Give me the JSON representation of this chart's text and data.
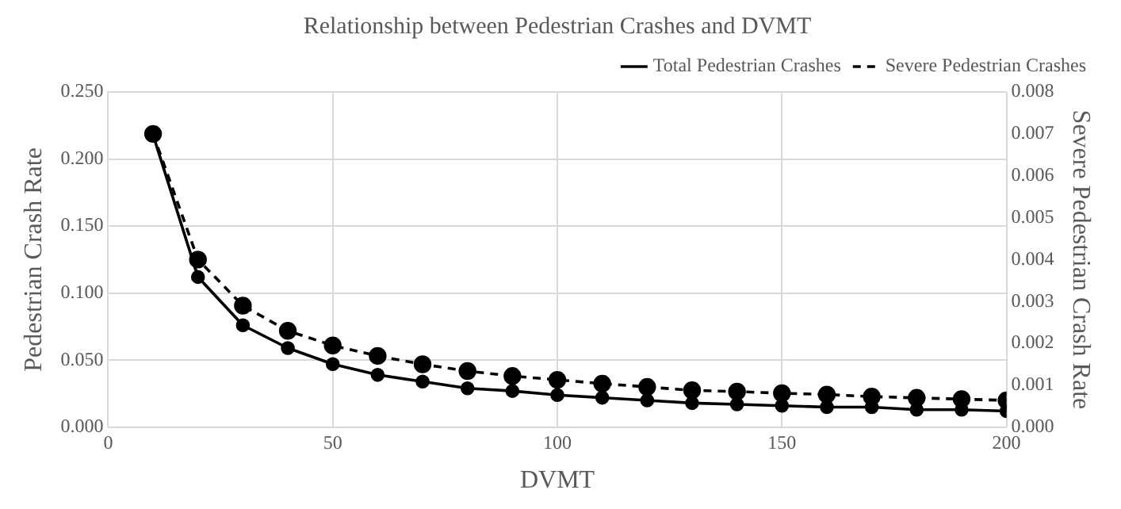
{
  "chart_data": {
    "type": "line",
    "title": "Relationship between Pedestrian Crashes and DVMT",
    "xlabel": "DVMT",
    "ylabel": "Pedestrian Crash Rate",
    "y2label": "Severe Pedestrian Crash Rate",
    "x": [
      10,
      20,
      30,
      40,
      50,
      60,
      70,
      80,
      90,
      100,
      110,
      120,
      130,
      140,
      150,
      160,
      170,
      180,
      190,
      200
    ],
    "series": [
      {
        "name": "Total Pedestrian Crashes",
        "color": "#000000",
        "line_style": "solid",
        "values": [
          0.218,
          0.112,
          0.076,
          0.059,
          0.047,
          0.039,
          0.034,
          0.029,
          0.027,
          0.024,
          0.022,
          0.02,
          0.018,
          0.017,
          0.016,
          0.015,
          0.015,
          0.013,
          0.013,
          0.012
        ]
      },
      {
        "name": "Severe Pedestrian Crashes",
        "color": "#000000",
        "line_style": "dashed",
        "axis": "y2",
        "values": [
          0.007,
          0.004,
          0.0029,
          0.0023,
          0.00195,
          0.0017,
          0.0015,
          0.00134,
          0.00122,
          0.00113,
          0.00104,
          0.00096,
          0.00088,
          0.00085,
          0.00081,
          0.00078,
          0.00073,
          0.0007,
          0.00067,
          0.00064
        ]
      }
    ],
    "xlim": [
      0,
      200
    ],
    "xticks": [
      0,
      50,
      100,
      150,
      200
    ],
    "ylim": [
      0,
      0.25
    ],
    "yticks": [
      {
        "value": 0,
        "label": "0.000"
      },
      {
        "value": 0.05,
        "label": "0.050"
      },
      {
        "value": 0.1,
        "label": "0.100"
      },
      {
        "value": 0.15,
        "label": "0.150"
      },
      {
        "value": 0.2,
        "label": "0.200"
      },
      {
        "value": 0.25,
        "label": "0.250"
      }
    ],
    "y2lim": [
      0,
      0.008
    ],
    "y2ticks": [
      {
        "value": 0,
        "label": "0.000"
      },
      {
        "value": 0.001,
        "label": "0.001"
      },
      {
        "value": 0.002,
        "label": "0.002"
      },
      {
        "value": 0.003,
        "label": "0.003"
      },
      {
        "value": 0.004,
        "label": "0.004"
      },
      {
        "value": 0.005,
        "label": "0.005"
      },
      {
        "value": 0.006,
        "label": "0.006"
      },
      {
        "value": 0.007,
        "label": "0.007"
      },
      {
        "value": 0.008,
        "label": "0.008"
      }
    ],
    "grid": true,
    "legend": "top right",
    "marker": "circle"
  }
}
